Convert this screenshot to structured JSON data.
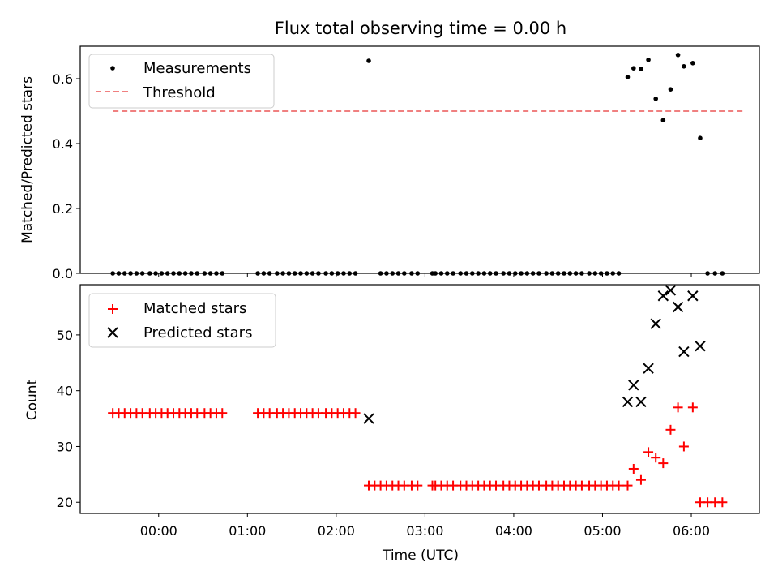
{
  "chart_data": [
    {
      "type": "scatter",
      "title": "Flux total observing time = 0.00 h",
      "ylabel": "Matched/Predicted stars",
      "xlabel": "",
      "xlim": [
        "-00:53",
        "06:46"
      ],
      "ylim": [
        0,
        0.7
      ],
      "yticks": [
        0.0,
        0.2,
        0.4,
        0.6
      ],
      "ytick_labels": [
        "0.0",
        "0.2",
        "0.4",
        "0.6"
      ],
      "legend_position": "upper-left",
      "threshold": {
        "name": "Threshold",
        "value": 0.5,
        "x": [
          "-00:31",
          "06:35"
        ],
        "color": "#f08080",
        "style": "dashed"
      },
      "series": [
        {
          "name": "Measurements",
          "color": "#000000",
          "marker": "dot",
          "points": [
            [
              "-00:31",
              0.0
            ],
            [
              "-00:27",
              0.0
            ],
            [
              "-00:23",
              0.0
            ],
            [
              "-00:19",
              0.0
            ],
            [
              "-00:15",
              0.0
            ],
            [
              "-00:11",
              0.0
            ],
            [
              "-00:06",
              0.0
            ],
            [
              "-00:02",
              0.0
            ],
            [
              "00:02",
              0.0
            ],
            [
              "00:06",
              0.0
            ],
            [
              "00:10",
              0.0
            ],
            [
              "00:14",
              0.0
            ],
            [
              "00:18",
              0.0
            ],
            [
              "00:22",
              0.0
            ],
            [
              "00:26",
              0.0
            ],
            [
              "00:31",
              0.0
            ],
            [
              "00:35",
              0.0
            ],
            [
              "00:39",
              0.0
            ],
            [
              "00:43",
              0.0
            ],
            [
              "01:07",
              0.0
            ],
            [
              "01:11",
              0.0
            ],
            [
              "01:15",
              0.0
            ],
            [
              "01:20",
              0.0
            ],
            [
              "01:24",
              0.0
            ],
            [
              "01:28",
              0.0
            ],
            [
              "01:32",
              0.0
            ],
            [
              "01:36",
              0.0
            ],
            [
              "01:40",
              0.0
            ],
            [
              "01:44",
              0.0
            ],
            [
              "01:48",
              0.0
            ],
            [
              "01:53",
              0.0
            ],
            [
              "01:57",
              0.0
            ],
            [
              "02:01",
              0.0
            ],
            [
              "02:05",
              0.0
            ],
            [
              "02:09",
              0.0
            ],
            [
              "02:13",
              0.0
            ],
            [
              "02:22",
              0.655
            ],
            [
              "02:30",
              0.0
            ],
            [
              "02:34",
              0.0
            ],
            [
              "02:38",
              0.0
            ],
            [
              "02:42",
              0.0
            ],
            [
              "02:46",
              0.0
            ],
            [
              "02:51",
              0.0
            ],
            [
              "02:55",
              0.0
            ],
            [
              "03:05",
              0.0
            ],
            [
              "03:07",
              0.0
            ],
            [
              "03:11",
              0.0
            ],
            [
              "03:15",
              0.0
            ],
            [
              "03:19",
              0.0
            ],
            [
              "03:24",
              0.0
            ],
            [
              "03:28",
              0.0
            ],
            [
              "03:32",
              0.0
            ],
            [
              "03:36",
              0.0
            ],
            [
              "03:40",
              0.0
            ],
            [
              "03:44",
              0.0
            ],
            [
              "03:48",
              0.0
            ],
            [
              "03:53",
              0.0
            ],
            [
              "03:57",
              0.0
            ],
            [
              "04:01",
              0.0
            ],
            [
              "04:05",
              0.0
            ],
            [
              "04:09",
              0.0
            ],
            [
              "04:13",
              0.0
            ],
            [
              "04:17",
              0.0
            ],
            [
              "04:22",
              0.0
            ],
            [
              "04:26",
              0.0
            ],
            [
              "04:30",
              0.0
            ],
            [
              "04:34",
              0.0
            ],
            [
              "04:38",
              0.0
            ],
            [
              "04:42",
              0.0
            ],
            [
              "04:46",
              0.0
            ],
            [
              "04:51",
              0.0
            ],
            [
              "04:55",
              0.0
            ],
            [
              "04:59",
              0.0
            ],
            [
              "05:03",
              0.0
            ],
            [
              "05:07",
              0.0
            ],
            [
              "05:11",
              0.0
            ],
            [
              "05:17",
              0.605
            ],
            [
              "05:21",
              0.632
            ],
            [
              "05:26",
              0.63
            ],
            [
              "05:31",
              0.658
            ],
            [
              "05:36",
              0.538
            ],
            [
              "05:41",
              0.472
            ],
            [
              "05:46",
              0.567
            ],
            [
              "05:51",
              0.673
            ],
            [
              "05:55",
              0.638
            ],
            [
              "06:01",
              0.648
            ],
            [
              "06:06",
              0.417
            ],
            [
              "06:11",
              0.0
            ],
            [
              "06:16",
              0.0
            ],
            [
              "06:21",
              0.0
            ]
          ]
        }
      ]
    },
    {
      "type": "scatter",
      "title": "",
      "xlabel": "Time (UTC)",
      "ylabel": "Count",
      "xlim": [
        "-00:53",
        "06:46"
      ],
      "ylim": [
        18,
        59
      ],
      "yticks": [
        20,
        30,
        40,
        50
      ],
      "ytick_labels": [
        "20",
        "30",
        "40",
        "50"
      ],
      "xticks": [
        "00:00",
        "01:00",
        "02:00",
        "03:00",
        "04:00",
        "05:00",
        "06:00"
      ],
      "xtick_labels": [
        "00:00",
        "01:00",
        "02:00",
        "03:00",
        "04:00",
        "05:00",
        "06:00"
      ],
      "legend_position": "upper-left",
      "series": [
        {
          "name": "Matched stars",
          "color": "#ff0000",
          "marker": "plus",
          "points": [
            [
              "-00:31",
              36
            ],
            [
              "-00:27",
              36
            ],
            [
              "-00:23",
              36
            ],
            [
              "-00:19",
              36
            ],
            [
              "-00:15",
              36
            ],
            [
              "-00:11",
              36
            ],
            [
              "-00:06",
              36
            ],
            [
              "-00:02",
              36
            ],
            [
              "00:02",
              36
            ],
            [
              "00:06",
              36
            ],
            [
              "00:10",
              36
            ],
            [
              "00:14",
              36
            ],
            [
              "00:18",
              36
            ],
            [
              "00:22",
              36
            ],
            [
              "00:26",
              36
            ],
            [
              "00:31",
              36
            ],
            [
              "00:35",
              36
            ],
            [
              "00:39",
              36
            ],
            [
              "00:43",
              36
            ],
            [
              "01:07",
              36
            ],
            [
              "01:11",
              36
            ],
            [
              "01:15",
              36
            ],
            [
              "01:20",
              36
            ],
            [
              "01:24",
              36
            ],
            [
              "01:28",
              36
            ],
            [
              "01:32",
              36
            ],
            [
              "01:36",
              36
            ],
            [
              "01:40",
              36
            ],
            [
              "01:44",
              36
            ],
            [
              "01:48",
              36
            ],
            [
              "01:53",
              36
            ],
            [
              "01:57",
              36
            ],
            [
              "02:01",
              36
            ],
            [
              "02:05",
              36
            ],
            [
              "02:09",
              36
            ],
            [
              "02:13",
              36
            ],
            [
              "02:22",
              23
            ],
            [
              "02:26",
              23
            ],
            [
              "02:30",
              23
            ],
            [
              "02:34",
              23
            ],
            [
              "02:38",
              23
            ],
            [
              "02:42",
              23
            ],
            [
              "02:46",
              23
            ],
            [
              "02:51",
              23
            ],
            [
              "02:55",
              23
            ],
            [
              "03:05",
              23
            ],
            [
              "03:07",
              23
            ],
            [
              "03:11",
              23
            ],
            [
              "03:15",
              23
            ],
            [
              "03:19",
              23
            ],
            [
              "03:24",
              23
            ],
            [
              "03:28",
              23
            ],
            [
              "03:32",
              23
            ],
            [
              "03:36",
              23
            ],
            [
              "03:40",
              23
            ],
            [
              "03:44",
              23
            ],
            [
              "03:48",
              23
            ],
            [
              "03:53",
              23
            ],
            [
              "03:57",
              23
            ],
            [
              "04:01",
              23
            ],
            [
              "04:05",
              23
            ],
            [
              "04:09",
              23
            ],
            [
              "04:13",
              23
            ],
            [
              "04:17",
              23
            ],
            [
              "04:22",
              23
            ],
            [
              "04:26",
              23
            ],
            [
              "04:30",
              23
            ],
            [
              "04:34",
              23
            ],
            [
              "04:38",
              23
            ],
            [
              "04:42",
              23
            ],
            [
              "04:46",
              23
            ],
            [
              "04:51",
              23
            ],
            [
              "04:55",
              23
            ],
            [
              "04:59",
              23
            ],
            [
              "05:03",
              23
            ],
            [
              "05:07",
              23
            ],
            [
              "05:11",
              23
            ],
            [
              "05:17",
              23
            ],
            [
              "05:21",
              26
            ],
            [
              "05:26",
              24
            ],
            [
              "05:31",
              29
            ],
            [
              "05:36",
              28
            ],
            [
              "05:41",
              27
            ],
            [
              "05:46",
              33
            ],
            [
              "05:51",
              37
            ],
            [
              "05:55",
              30
            ],
            [
              "06:01",
              37
            ],
            [
              "06:06",
              20
            ],
            [
              "06:11",
              20
            ],
            [
              "06:16",
              20
            ],
            [
              "06:21",
              20
            ]
          ]
        },
        {
          "name": "Predicted stars",
          "color": "#000000",
          "marker": "x",
          "points": [
            [
              "02:22",
              35
            ],
            [
              "05:17",
              38
            ],
            [
              "05:21",
              41
            ],
            [
              "05:26",
              38
            ],
            [
              "05:31",
              44
            ],
            [
              "05:36",
              52
            ],
            [
              "05:41",
              57
            ],
            [
              "05:46",
              58
            ],
            [
              "05:51",
              55
            ],
            [
              "05:55",
              47
            ],
            [
              "06:01",
              57
            ],
            [
              "06:06",
              48
            ]
          ]
        }
      ]
    }
  ]
}
